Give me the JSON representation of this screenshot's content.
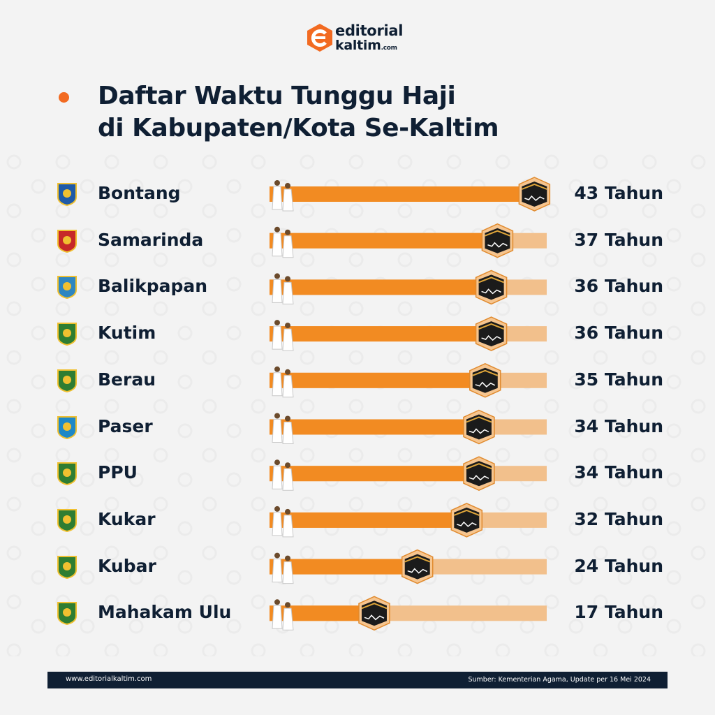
{
  "brand": {
    "line1": "editorial",
    "line2": "kaltim",
    "suffix": ".com",
    "accent": "#f26a21",
    "navy": "#0f1f33"
  },
  "title": {
    "line1": "Daftar Waktu Tunggu Haji",
    "line2": "di Kabupaten/Kota Se-Kaltim"
  },
  "chart_data": {
    "type": "bar",
    "orientation": "horizontal",
    "categories": [
      "Bontang",
      "Samarinda",
      "Balikpapan",
      "Kutim",
      "Berau",
      "Paser",
      "PPU",
      "Kukar",
      "Kubar",
      "Mahakam Ulu"
    ],
    "values": [
      43,
      37,
      36,
      36,
      35,
      34,
      34,
      32,
      24,
      17
    ],
    "value_labels": [
      "43 Tahun",
      "37 Tahun",
      "36 Tahun",
      "36 Tahun",
      "35 Tahun",
      "34 Tahun",
      "34 Tahun",
      "32 Tahun",
      "24 Tahun",
      "17 Tahun"
    ],
    "xlim": [
      0,
      45
    ],
    "bar_color": "#f28b22",
    "track_color": "#f2c08c",
    "marker_icon": "kaaba-icon",
    "start_icon": "pilgrim-icon",
    "grid": false
  },
  "footer": {
    "url": "www.editorialkaltim.com",
    "source": "Sumber: Kementerian Agama, Update per 16 Mei 2024"
  }
}
